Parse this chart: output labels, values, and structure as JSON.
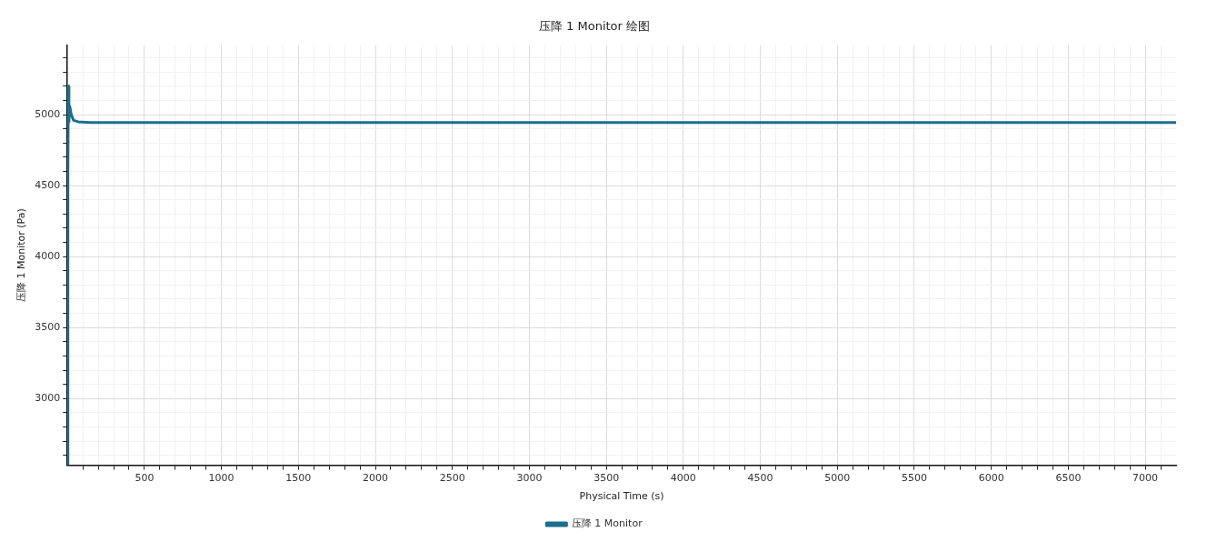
{
  "chart_data": {
    "type": "line",
    "title": "压降 1 Monitor 绘图",
    "xlabel": "Physical Time (s)",
    "ylabel": "压降 1 Monitor (Pa)",
    "x": [
      0,
      3,
      6,
      10,
      15,
      25,
      40,
      70,
      150,
      7200
    ],
    "series": [
      {
        "name": "压降 1 Monitor",
        "color": "#1a6e8e",
        "values": [
          2540,
          4600,
          5200,
          4950,
          5060,
          5000,
          4960,
          4950,
          4945,
          4945
        ]
      }
    ],
    "xlim": [
      0,
      7200
    ],
    "ylim": [
      2530,
      5490
    ],
    "xticks": [
      {
        "value": 100,
        "label": null
      },
      {
        "value": 200,
        "label": null
      },
      {
        "value": 300,
        "label": null
      },
      {
        "value": 400,
        "label": null
      },
      500,
      {
        "value": 600,
        "label": null
      },
      {
        "value": 700,
        "label": null
      },
      {
        "value": 800,
        "label": null
      },
      {
        "value": 900,
        "label": null
      },
      1000,
      {
        "value": 1100,
        "label": null
      },
      {
        "value": 1200,
        "label": null
      },
      {
        "value": 1300,
        "label": null
      },
      {
        "value": 1400,
        "label": null
      },
      1500,
      {
        "value": 1600,
        "label": null
      },
      {
        "value": 1700,
        "label": null
      },
      {
        "value": 1800,
        "label": null
      },
      {
        "value": 1900,
        "label": null
      },
      2000,
      {
        "value": 2100,
        "label": null
      },
      {
        "value": 2200,
        "label": null
      },
      {
        "value": 2300,
        "label": null
      },
      {
        "value": 2400,
        "label": null
      },
      2500,
      {
        "value": 2600,
        "label": null
      },
      {
        "value": 2700,
        "label": null
      },
      {
        "value": 2800,
        "label": null
      },
      {
        "value": 2900,
        "label": null
      },
      3000,
      {
        "value": 3100,
        "label": null
      },
      {
        "value": 3200,
        "label": null
      },
      {
        "value": 3300,
        "label": null
      },
      {
        "value": 3400,
        "label": null
      },
      3500,
      {
        "value": 3600,
        "label": null
      },
      {
        "value": 3700,
        "label": null
      },
      {
        "value": 3800,
        "label": null
      },
      {
        "value": 3900,
        "label": null
      },
      4000,
      {
        "value": 4100,
        "label": null
      },
      {
        "value": 4200,
        "label": null
      },
      {
        "value": 4300,
        "label": null
      },
      {
        "value": 4400,
        "label": null
      },
      4500,
      {
        "value": 4600,
        "label": null
      },
      {
        "value": 4700,
        "label": null
      },
      {
        "value": 4800,
        "label": null
      },
      {
        "value": 4900,
        "label": null
      },
      5000,
      {
        "value": 5100,
        "label": null
      },
      {
        "value": 5200,
        "label": null
      },
      {
        "value": 5300,
        "label": null
      },
      {
        "value": 5400,
        "label": null
      },
      5500,
      {
        "value": 5600,
        "label": null
      },
      {
        "value": 5700,
        "label": null
      },
      {
        "value": 5800,
        "label": null
      },
      {
        "value": 5900,
        "label": null
      },
      6000,
      {
        "value": 6100,
        "label": null
      },
      {
        "value": 6200,
        "label": null
      },
      {
        "value": 6300,
        "label": null
      },
      {
        "value": 6400,
        "label": null
      },
      6500,
      {
        "value": 6600,
        "label": null
      },
      {
        "value": 6700,
        "label": null
      },
      {
        "value": 6800,
        "label": null
      },
      {
        "value": 6900,
        "label": null
      },
      7000,
      {
        "value": 7100,
        "label": null
      }
    ],
    "yticks": [
      {
        "value": 2600,
        "label": null
      },
      {
        "value": 2700,
        "label": null
      },
      {
        "value": 2800,
        "label": null
      },
      {
        "value": 2900,
        "label": null
      },
      3000,
      {
        "value": 3100,
        "label": null
      },
      {
        "value": 3200,
        "label": null
      },
      {
        "value": 3300,
        "label": null
      },
      {
        "value": 3400,
        "label": null
      },
      3500,
      {
        "value": 3600,
        "label": null
      },
      {
        "value": 3700,
        "label": null
      },
      {
        "value": 3800,
        "label": null
      },
      {
        "value": 3900,
        "label": null
      },
      4000,
      {
        "value": 4100,
        "label": null
      },
      {
        "value": 4200,
        "label": null
      },
      {
        "value": 4300,
        "label": null
      },
      {
        "value": 4400,
        "label": null
      },
      4500,
      {
        "value": 4600,
        "label": null
      },
      {
        "value": 4700,
        "label": null
      },
      {
        "value": 4800,
        "label": null
      },
      {
        "value": 4900,
        "label": null
      },
      5000,
      {
        "value": 5100,
        "label": null
      },
      {
        "value": 5200,
        "label": null
      },
      {
        "value": 5300,
        "label": null
      },
      {
        "value": 5400,
        "label": null
      }
    ],
    "grid": true,
    "legend": "bottom",
    "marker": "none",
    "line_style": "solid"
  }
}
